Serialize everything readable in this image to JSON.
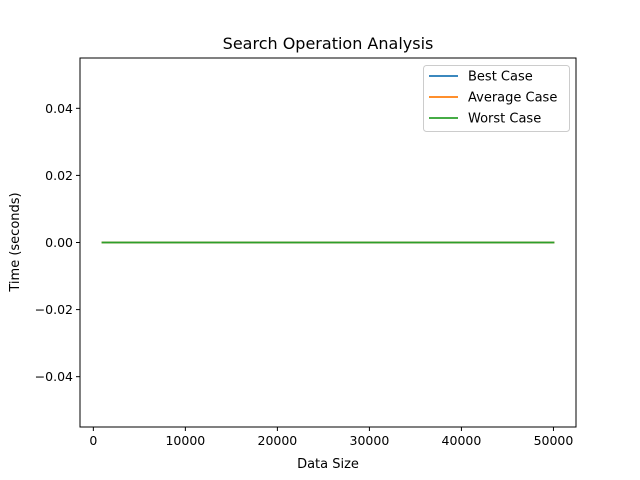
{
  "chart_data": {
    "type": "line",
    "title": "Search Operation Analysis",
    "xlabel": "Data Size",
    "ylabel": "Time (seconds)",
    "xlim": [
      -1450,
      52450
    ],
    "ylim": [
      -0.055,
      0.055
    ],
    "x_ticks": [
      0,
      10000,
      20000,
      30000,
      40000,
      50000
    ],
    "x_tick_labels": [
      "0",
      "10000",
      "20000",
      "30000",
      "40000",
      "50000"
    ],
    "y_ticks": [
      -0.04,
      -0.02,
      0.0,
      0.02,
      0.04
    ],
    "y_tick_labels": [
      "−0.04",
      "−0.02",
      "0.00",
      "0.02",
      "0.04"
    ],
    "grid": false,
    "legend_position": "top-right",
    "x": [
      1000,
      5000,
      10000,
      20000,
      30000,
      40000,
      50000
    ],
    "series": [
      {
        "name": "Best Case",
        "color": "#1f77b4",
        "values": [
          0,
          0,
          0,
          0,
          0,
          0,
          0
        ]
      },
      {
        "name": "Average Case",
        "color": "#ff7f0e",
        "values": [
          0,
          0,
          0,
          0,
          0,
          0,
          0
        ]
      },
      {
        "name": "Worst Case",
        "color": "#2ca02c",
        "values": [
          0,
          0,
          0,
          0,
          0,
          0,
          0
        ]
      }
    ]
  }
}
